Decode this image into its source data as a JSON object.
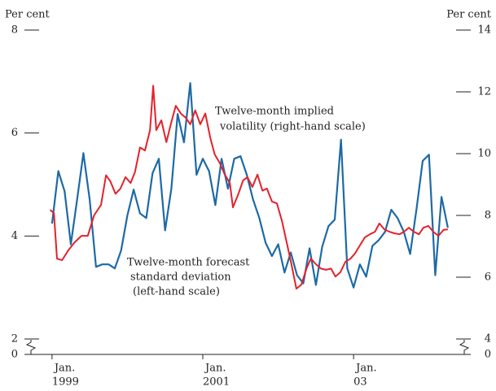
{
  "chart_data": {
    "type": "line",
    "y_axis_label": "Per cent",
    "y2_axis_label": "Per cent",
    "ylim": [
      2,
      8
    ],
    "yticks": [
      2,
      4,
      6,
      8
    ],
    "y_break_label": "0",
    "y2lim": [
      4,
      14
    ],
    "y2ticks": [
      4,
      6,
      8,
      10,
      12,
      14
    ],
    "y2_break_label": "0",
    "xlim": [
      -4,
      66
    ],
    "xticks": [
      {
        "value": 0,
        "label": "Jan.",
        "year": "1999"
      },
      {
        "value": 24,
        "label": "Jan.",
        "year": "2001"
      },
      {
        "value": 48,
        "label": "Jan.",
        "year": "03"
      }
    ],
    "annotations": [
      {
        "lines": [
          "Twelve-month implied",
          "volatility (right-hand scale)"
        ],
        "series": 1
      },
      {
        "lines": [
          "Twelve-month forecast",
          "standard deviation",
          "(left-hand scale)"
        ],
        "series": 0
      }
    ],
    "series": [
      {
        "name": "Twelve-month forecast standard deviation",
        "color": "#1d6aa5",
        "axis": "y",
        "x": [
          0,
          1,
          2,
          3,
          4,
          5,
          6,
          7,
          8,
          9,
          10,
          11,
          12,
          13,
          14,
          15,
          16,
          17,
          18,
          19,
          20,
          21,
          22,
          23,
          24,
          25,
          26,
          27,
          28,
          29,
          30,
          31,
          32,
          33,
          34,
          35,
          36,
          37,
          38,
          39,
          40,
          41,
          42,
          43,
          44,
          45,
          46,
          47,
          48,
          49,
          50,
          51,
          52,
          53,
          54,
          55,
          56,
          57,
          58,
          59,
          60,
          61,
          62,
          63
        ],
        "values": [
          4.24,
          5.26,
          4.87,
          3.84,
          4.71,
          5.61,
          4.71,
          3.4,
          3.45,
          3.45,
          3.37,
          3.72,
          4.4,
          4.9,
          4.44,
          4.35,
          5.22,
          5.5,
          4.11,
          4.92,
          6.37,
          5.82,
          6.97,
          5.19,
          5.5,
          5.26,
          4.6,
          5.5,
          4.92,
          5.5,
          5.55,
          5.19,
          4.71,
          4.35,
          3.87,
          3.61,
          3.84,
          3.29,
          3.68,
          3.24,
          3.08,
          3.76,
          3.05,
          3.79,
          4.19,
          4.32,
          5.87,
          3.37,
          3.0,
          3.45,
          3.21,
          3.81,
          3.92,
          4.08,
          4.51,
          4.35,
          4.08,
          3.65,
          4.51,
          5.46,
          5.58,
          3.24,
          4.76,
          4.16
        ]
      },
      {
        "name": "Twelve-month implied volatility",
        "color": "#e3222c",
        "axis": "y2",
        "x": [
          -0.3,
          0.3,
          0.8,
          1.6,
          2.6,
          3.6,
          4.7,
          5.7,
          6.7,
          7.8,
          8.6,
          9.3,
          10.1,
          10.9,
          11.7,
          12.5,
          13.2,
          14.0,
          14.8,
          15.6,
          16.1,
          16.6,
          17.4,
          18.2,
          18.9,
          19.7,
          20.5,
          21.3,
          22.0,
          22.8,
          23.6,
          24.4,
          25.2,
          25.9,
          26.7,
          27.5,
          28.3,
          28.8,
          29.6,
          30.4,
          31.1,
          31.9,
          32.7,
          33.5,
          34.2,
          35.0,
          35.8,
          36.6,
          37.4,
          38.1,
          38.9,
          39.7,
          40.5,
          41.2,
          42.0,
          42.8,
          43.6,
          44.4,
          45.1,
          45.9,
          46.7,
          47.5,
          48.2,
          49.0,
          49.8,
          50.6,
          51.4,
          52.1,
          52.9,
          53.7,
          54.5,
          55.3,
          56.0,
          56.8,
          57.6,
          58.4,
          59.1,
          59.9,
          60.7,
          61.5,
          62.3,
          63.0
        ],
        "values": [
          8.18,
          8.08,
          6.6,
          6.55,
          6.87,
          7.13,
          7.34,
          7.34,
          8.0,
          8.34,
          9.3,
          9.1,
          8.7,
          8.87,
          9.24,
          9.05,
          9.4,
          10.2,
          10.1,
          10.76,
          12.2,
          10.76,
          11.08,
          10.37,
          10.95,
          11.55,
          11.3,
          11.16,
          10.95,
          11.4,
          10.95,
          11.3,
          10.5,
          9.97,
          9.7,
          9.32,
          9.05,
          8.26,
          8.66,
          9.13,
          9.24,
          8.92,
          9.32,
          8.8,
          8.87,
          8.45,
          8.39,
          7.82,
          7.08,
          6.42,
          5.63,
          5.76,
          6.28,
          6.6,
          6.42,
          6.28,
          6.24,
          6.28,
          6.02,
          6.16,
          6.5,
          6.6,
          6.76,
          7.03,
          7.29,
          7.39,
          7.47,
          7.74,
          7.55,
          7.47,
          7.42,
          7.39,
          7.47,
          7.6,
          7.47,
          7.39,
          7.6,
          7.66,
          7.47,
          7.34,
          7.53,
          7.55
        ]
      }
    ]
  }
}
